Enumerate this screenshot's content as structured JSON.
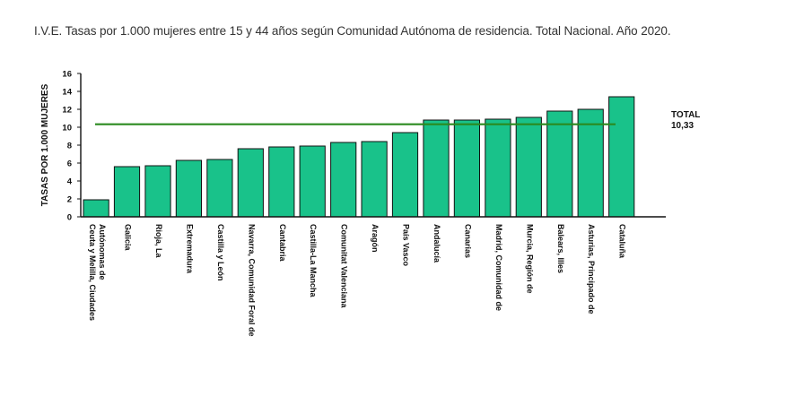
{
  "title": "I.V.E. Tasas por 1.000 mujeres entre 15 y 44 años según Comunidad Autónoma de residencia. Total Nacional. Año 2020.",
  "chart_data": {
    "type": "bar",
    "title": "I.V.E. Tasas por 1.000 mujeres entre 15 y 44 años según Comunidad Autónoma de residencia. Total Nacional. Año 2020.",
    "xlabel": "",
    "ylabel": "TASAS POR 1.000 MUJERES",
    "ylim": [
      0,
      16
    ],
    "yticks": [
      0,
      2,
      4,
      6,
      8,
      10,
      12,
      14,
      16
    ],
    "grid": false,
    "bar_color": "#19c28a",
    "reference_color": "#2a8a1f",
    "categories": [
      [
        "Ceuta y Melilla, Ciudades",
        "Autónomas de"
      ],
      [
        "Galicia"
      ],
      [
        "Rioja, La"
      ],
      [
        "Extremadura"
      ],
      [
        "Castilla y León"
      ],
      [
        "Navarra, Comunidad Foral de"
      ],
      [
        "Cantabria"
      ],
      [
        "Castilla-La Mancha"
      ],
      [
        "Comunitat Valenciana"
      ],
      [
        "Aragón"
      ],
      [
        "País Vasco"
      ],
      [
        "Andalucía"
      ],
      [
        "Canarias"
      ],
      [
        "Madrid, Comunidad de"
      ],
      [
        "Murcia, Región de"
      ],
      [
        "Balears, Illes"
      ],
      [
        "Asturias, Principado de"
      ],
      [
        "Cataluña"
      ]
    ],
    "values": [
      1.9,
      5.6,
      5.7,
      6.3,
      6.4,
      7.6,
      7.8,
      7.9,
      8.3,
      8.4,
      9.4,
      10.8,
      10.8,
      10.9,
      11.1,
      11.8,
      12.0,
      13.4
    ],
    "reference_line": {
      "value": 10.33,
      "label_lines": [
        "TOTAL",
        "10,33"
      ]
    }
  }
}
